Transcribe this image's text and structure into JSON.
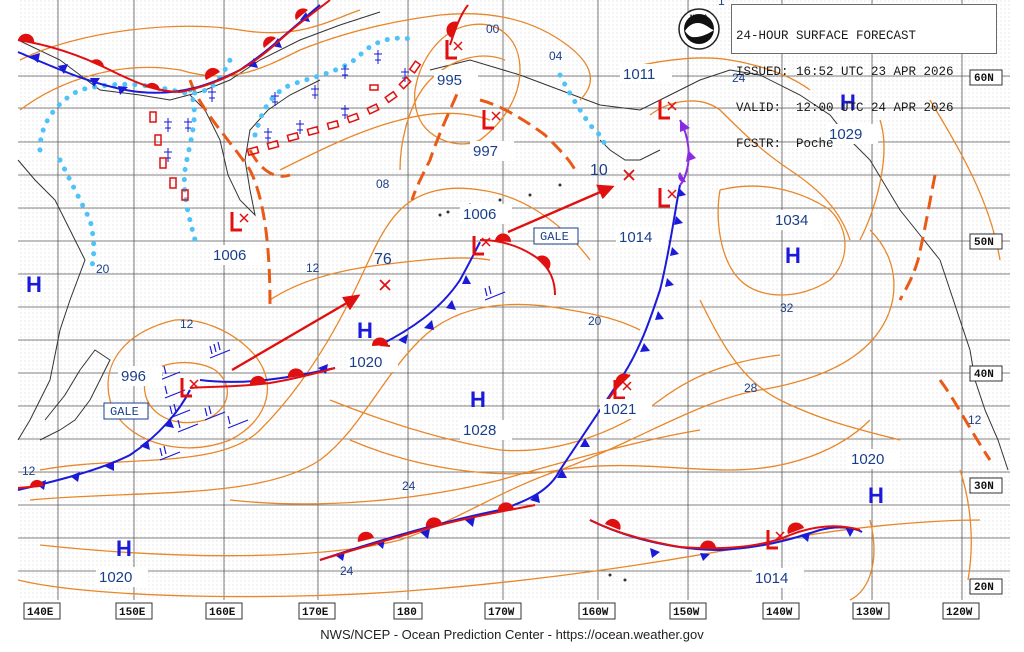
{
  "header": {
    "title": "24-HOUR SURFACE FORECAST",
    "issued": "ISSUED: 16:52 UTC 23 APR 2026",
    "valid": "VALID:  12:00 UTC 24 APR 2026",
    "forecaster": "FCSTR:  Poche"
  },
  "logo": {
    "name": "NOAA",
    "icon": "noaa-bird-logo"
  },
  "footer": "NWS/NCEP - Ocean Prediction Center - https://ocean.weather.gov",
  "lon_labels": [
    "140E",
    "150E",
    "160E",
    "170E",
    "180",
    "170W",
    "160W",
    "150W",
    "140W",
    "130W",
    "120W"
  ],
  "lat_labels": [
    "60N",
    "50N",
    "40N",
    "30N",
    "20N"
  ],
  "pressure_labels": [
    {
      "text": "1006"
    },
    {
      "text": "995"
    },
    {
      "text": "997"
    },
    {
      "text": "1006"
    },
    {
      "text": "1014"
    },
    {
      "text": "1011"
    },
    {
      "text": "1029"
    },
    {
      "text": "1034"
    },
    {
      "text": "996"
    },
    {
      "text": "1020"
    },
    {
      "text": "1028"
    },
    {
      "text": "1021"
    },
    {
      "text": "1020"
    },
    {
      "text": "1020"
    },
    {
      "text": "1014"
    }
  ],
  "isobar_short_labels": [
    "00",
    "04",
    "08",
    "12",
    "12",
    "20",
    "24",
    "76",
    "10",
    "20",
    "24",
    "28",
    "32",
    "12",
    "12",
    "24",
    "1"
  ],
  "gale_labels": [
    "GALE",
    "GALE"
  ],
  "colors": {
    "isobar": "#e8872a",
    "trough": "#e85a16",
    "grid": "#5a5a5a",
    "dots": "#c9c9c9",
    "coast": "#333333",
    "cold_front": "#1a1ad8",
    "warm_front": "#e01010",
    "occluded": "#8a2be2",
    "ice": "#4fc3f7",
    "label_text": "#1a3f8a",
    "high": "#1a1ad8",
    "low": "#e01010"
  }
}
